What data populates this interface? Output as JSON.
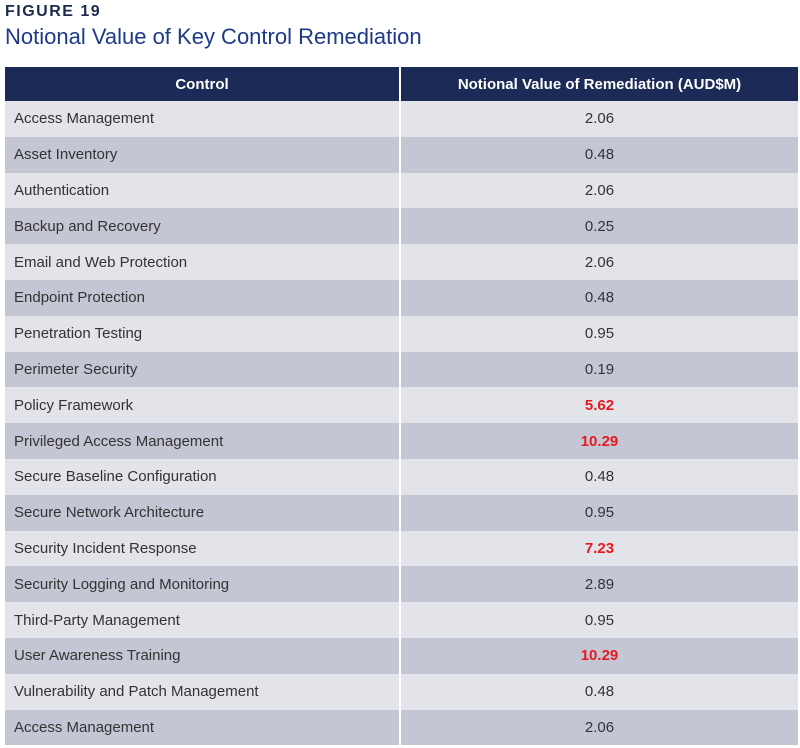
{
  "figure_label": "FIGURE 19",
  "title": "Notional Value of Key Control Remediation",
  "chart_data": {
    "type": "table",
    "title": "Notional Value of Key Control Remediation",
    "columns": [
      "Control",
      "Notional Value of Remediation (AUD$M)"
    ],
    "highlight_color": "#e31b23",
    "header_color": "#1b2a56",
    "rows": [
      {
        "control": "Access Management",
        "value": "2.06",
        "highlight": false
      },
      {
        "control": "Asset Inventory",
        "value": "0.48",
        "highlight": false
      },
      {
        "control": "Authentication",
        "value": "2.06",
        "highlight": false
      },
      {
        "control": "Backup and Recovery",
        "value": "0.25",
        "highlight": false
      },
      {
        "control": "Email and Web Protection",
        "value": "2.06",
        "highlight": false
      },
      {
        "control": "Endpoint Protection",
        "value": "0.48",
        "highlight": false
      },
      {
        "control": "Penetration Testing",
        "value": "0.95",
        "highlight": false
      },
      {
        "control": "Perimeter Security",
        "value": "0.19",
        "highlight": false
      },
      {
        "control": "Policy Framework",
        "value": "5.62",
        "highlight": true
      },
      {
        "control": "Privileged Access Management",
        "value": "10.29",
        "highlight": true
      },
      {
        "control": "Secure Baseline Configuration",
        "value": "0.48",
        "highlight": false
      },
      {
        "control": "Secure Network Architecture",
        "value": "0.95",
        "highlight": false
      },
      {
        "control": "Security Incident Response",
        "value": "7.23",
        "highlight": true
      },
      {
        "control": "Security Logging and Monitoring",
        "value": "2.89",
        "highlight": false
      },
      {
        "control": "Third-Party Management",
        "value": "0.95",
        "highlight": false
      },
      {
        "control": "User Awareness Training",
        "value": "10.29",
        "highlight": true
      },
      {
        "control": "Vulnerability and Patch Management",
        "value": "0.48",
        "highlight": false
      },
      {
        "control": "Access Management",
        "value": "2.06",
        "highlight": false
      }
    ]
  }
}
